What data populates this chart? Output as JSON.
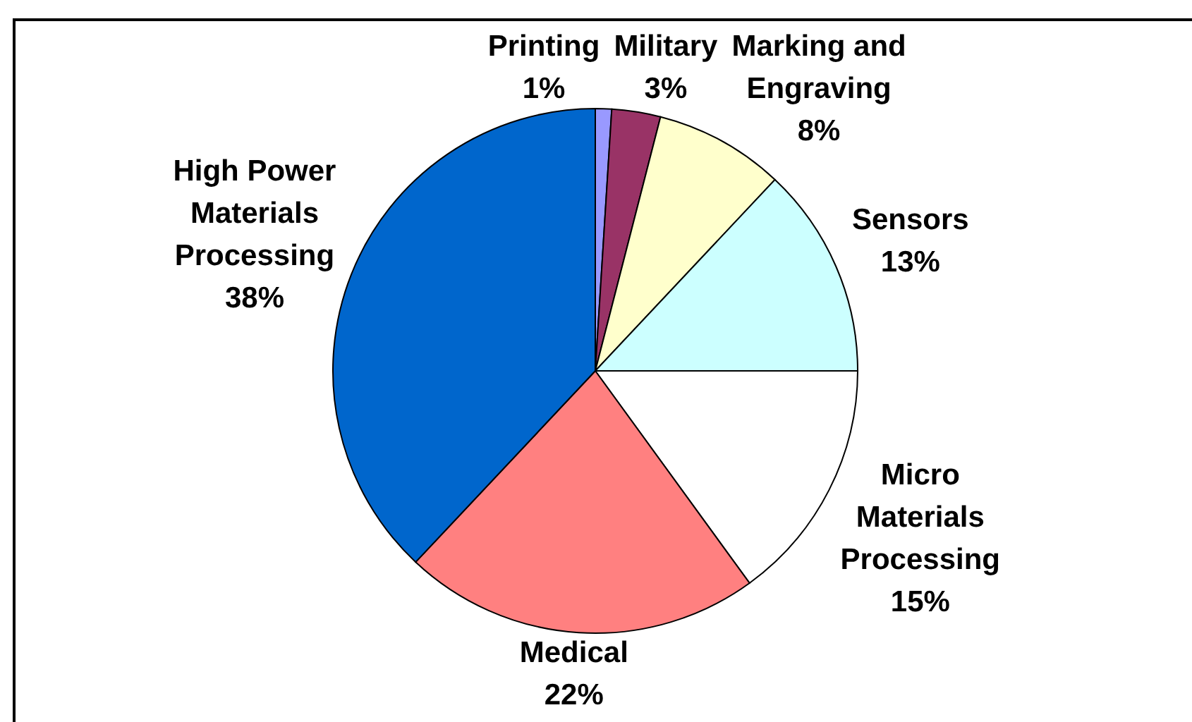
{
  "chart_data": {
    "type": "pie",
    "categories": [
      "Printing",
      "Military",
      "Marking and Engraving",
      "Sensors",
      "Micro Materials Processing",
      "Medical",
      "High Power Materials Processing"
    ],
    "values": [
      1,
      3,
      8,
      13,
      15,
      22,
      38
    ],
    "colors": [
      "#9999ff",
      "#993366",
      "#ffffcc",
      "#ccffff",
      "#ffffff",
      "#ff8080",
      "#0066cc"
    ],
    "value_labels": [
      "1%",
      "3%",
      "8%",
      "13%",
      "15%",
      "22%",
      "38%"
    ]
  }
}
